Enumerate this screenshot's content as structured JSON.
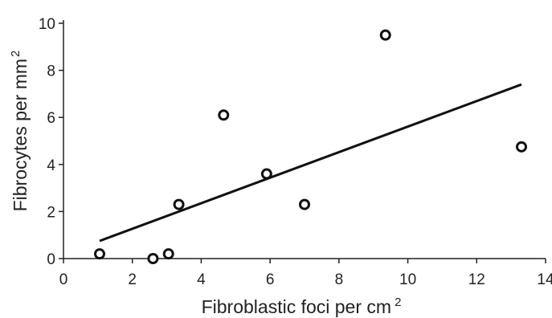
{
  "chart_data": {
    "type": "scatter",
    "xlabel": "Fibroblastic foci per cm",
    "xlabel_sup": "2",
    "ylabel": "Fibrocytes per mm",
    "ylabel_sup": "2",
    "xlim": [
      0,
      14
    ],
    "ylim": [
      0,
      10
    ],
    "x_ticks": [
      0,
      2,
      4,
      6,
      8,
      10,
      12,
      14
    ],
    "y_ticks": [
      0,
      2,
      4,
      6,
      8,
      10
    ],
    "grid": false,
    "points": [
      {
        "x": 1.05,
        "y": 0.2
      },
      {
        "x": 2.6,
        "y": 0.0
      },
      {
        "x": 3.05,
        "y": 0.2
      },
      {
        "x": 3.35,
        "y": 2.3
      },
      {
        "x": 4.65,
        "y": 6.1
      },
      {
        "x": 5.9,
        "y": 3.6
      },
      {
        "x": 7.0,
        "y": 2.3
      },
      {
        "x": 9.35,
        "y": 9.5
      },
      {
        "x": 13.3,
        "y": 4.75
      }
    ],
    "trendline": {
      "x": [
        1.05,
        13.3
      ],
      "y": [
        0.75,
        7.4
      ]
    },
    "colors": {
      "marker": "#111111",
      "line": "#111111",
      "axis": "#222222"
    }
  }
}
